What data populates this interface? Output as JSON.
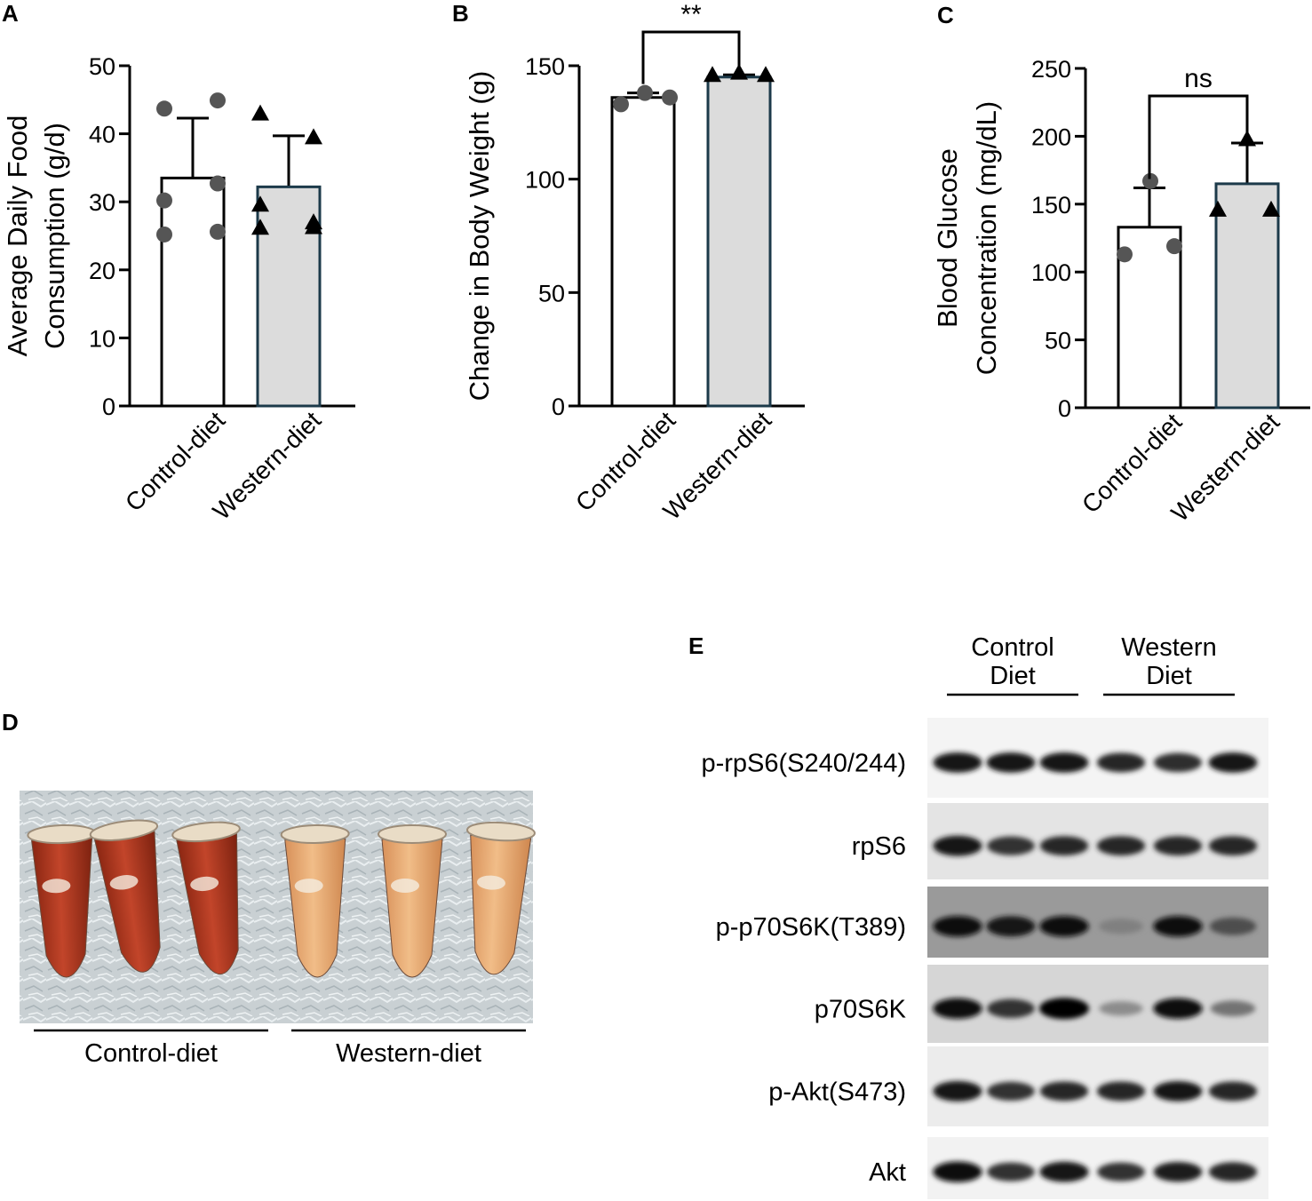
{
  "panels": {
    "A": "A",
    "B": "B",
    "C": "C",
    "D": "D",
    "E": "E"
  },
  "chart_data": [
    {
      "panel": "A",
      "type": "bar",
      "categories": [
        "Control-diet",
        "Western-diet"
      ],
      "values": [
        33.5,
        32.2
      ],
      "errors": [
        8.8,
        7.5
      ],
      "points": [
        [
          43.7,
          44.9,
          30.2,
          32.7,
          25.2,
          25.6
        ],
        [
          43.0,
          39.5,
          26.2,
          27.0,
          29.6,
          26.3
        ]
      ],
      "markers": [
        "circle",
        "triangle"
      ],
      "ylabel": "Average Daily Food\nConsumption (g/d)",
      "ylim": [
        0,
        50
      ],
      "yticks": [
        0,
        10,
        20,
        30,
        40,
        50
      ],
      "bar_fill": [
        "#ffffff",
        "#dcdcdc"
      ],
      "bar_stroke": [
        "#000000",
        "#1c3a4a"
      ],
      "significance": ""
    },
    {
      "panel": "B",
      "type": "bar",
      "categories": [
        "Control-diet",
        "Western-diet"
      ],
      "values": [
        136,
        145
      ],
      "errors": [
        2,
        1
      ],
      "points": [
        [
          133,
          138,
          136
        ],
        [
          146,
          147,
          146
        ]
      ],
      "markers": [
        "circle",
        "triangle"
      ],
      "ylabel": "Change in Body Weight (g)",
      "ylim": [
        0,
        150
      ],
      "yticks": [
        0,
        50,
        100,
        150
      ],
      "bar_fill": [
        "#ffffff",
        "#dcdcdc"
      ],
      "bar_stroke": [
        "#000000",
        "#1c3a4a"
      ],
      "significance": "**"
    },
    {
      "panel": "C",
      "type": "bar",
      "categories": [
        "Control-diet",
        "Western-diet"
      ],
      "values": [
        133,
        165
      ],
      "errors": [
        29,
        30
      ],
      "points": [
        [
          113,
          167,
          119
        ],
        [
          146,
          198,
          146
        ]
      ],
      "markers": [
        "circle",
        "triangle"
      ],
      "ylabel": "Blood Glucose\nConcentration (mg/dL)",
      "ylim": [
        0,
        250
      ],
      "yticks": [
        0,
        50,
        100,
        150,
        200,
        250
      ],
      "bar_fill": [
        "#ffffff",
        "#dcdcdc"
      ],
      "bar_stroke": [
        "#000000",
        "#1c3a4a"
      ],
      "significance": "ns"
    }
  ],
  "photo": {
    "groups": [
      "Control-diet",
      "Western-diet"
    ]
  },
  "blot": {
    "groups": [
      "Control\nDiet",
      "Western\nDiet"
    ],
    "rows": [
      {
        "label": "p-rpS6(S240/244)",
        "intensity": [
          0.9,
          0.9,
          0.9,
          0.85,
          0.82,
          0.9
        ]
      },
      {
        "label": "rpS6",
        "intensity": [
          0.92,
          0.8,
          0.85,
          0.85,
          0.85,
          0.85
        ]
      },
      {
        "label": "p-p70S6K(T389)",
        "intensity": [
          0.95,
          0.92,
          0.95,
          0.5,
          0.95,
          0.7
        ]
      },
      {
        "label": "p70S6K",
        "intensity": [
          0.95,
          0.8,
          1.0,
          0.45,
          0.95,
          0.55
        ]
      },
      {
        "label": "p-Akt(S473)",
        "intensity": [
          0.92,
          0.8,
          0.85,
          0.85,
          0.9,
          0.85
        ]
      },
      {
        "label": "Akt",
        "intensity": [
          0.95,
          0.8,
          0.92,
          0.8,
          0.88,
          0.85
        ]
      }
    ]
  }
}
